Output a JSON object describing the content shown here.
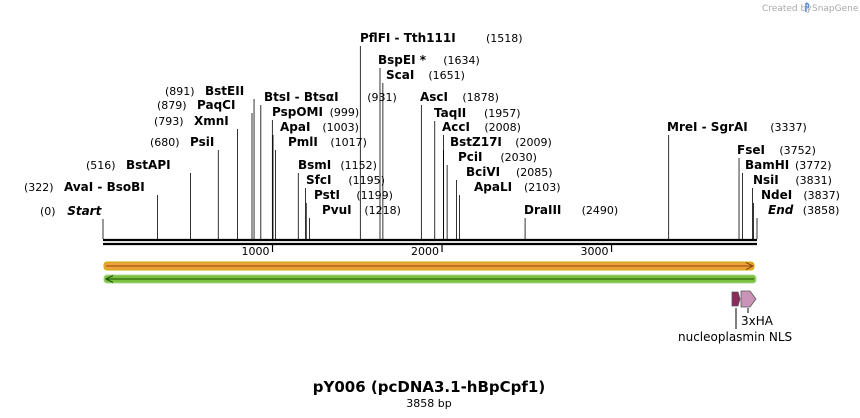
{
  "credit": {
    "created_by": "Created by",
    "brand": "SnapGene"
  },
  "title": "pY006 (pcDNA3.1-hBpCpf1)",
  "subtitle": "3858 bp",
  "total_length": 3858,
  "ticks": [
    {
      "pos": 1000,
      "label": "1000"
    },
    {
      "pos": 2000,
      "label": "2000"
    },
    {
      "pos": 3000,
      "label": "3000"
    }
  ],
  "sites": [
    {
      "name": "Start",
      "pos": "(0)",
      "value": 0,
      "style": "italic"
    },
    {
      "name": "AvaI - BsoBI",
      "pos": "(322)",
      "value": 322
    },
    {
      "name": "BstAPI",
      "pos": "(516)",
      "value": 516
    },
    {
      "name": "PsiI",
      "pos": "(680)",
      "value": 680
    },
    {
      "name": "XmnI",
      "pos": "(793)",
      "value": 793
    },
    {
      "name": "PaqCI",
      "pos": "(879)",
      "value": 879
    },
    {
      "name": "BstEII",
      "pos": "(891)",
      "value": 891
    },
    {
      "name": "BtsI - BtsαI",
      "pos": "(931)",
      "value": 931
    },
    {
      "name": "PspOMI",
      "pos": "(999)",
      "value": 999
    },
    {
      "name": "ApaI",
      "pos": "(1003)",
      "value": 1003
    },
    {
      "name": "PmlI",
      "pos": "(1017)",
      "value": 1017
    },
    {
      "name": "BsmI",
      "pos": "(1152)",
      "value": 1152
    },
    {
      "name": "SfcI",
      "pos": "(1195)",
      "value": 1195
    },
    {
      "name": "PstI",
      "pos": "(1199)",
      "value": 1199
    },
    {
      "name": "PvuI",
      "pos": "(1218)",
      "value": 1218
    },
    {
      "name": "PflFI - Tth111I",
      "pos": "(1518)",
      "value": 1518
    },
    {
      "name": "BspEI *",
      "pos": "(1634)",
      "value": 1634
    },
    {
      "name": "ScaI",
      "pos": "(1651)",
      "value": 1651
    },
    {
      "name": "AscI",
      "pos": "(1878)",
      "value": 1878
    },
    {
      "name": "TaqII",
      "pos": "(1957)",
      "value": 1957
    },
    {
      "name": "AccI",
      "pos": "(2008)",
      "value": 2008
    },
    {
      "name": "BstZ17I",
      "pos": "(2009)",
      "value": 2009
    },
    {
      "name": "PciI",
      "pos": "(2030)",
      "value": 2030
    },
    {
      "name": "BciVI",
      "pos": "(2085)",
      "value": 2085
    },
    {
      "name": "ApaLI",
      "pos": "(2103)",
      "value": 2103
    },
    {
      "name": "DraIII",
      "pos": "(2490)",
      "value": 2490
    },
    {
      "name": "MreI - SgrAI",
      "pos": "(3337)",
      "value": 3337
    },
    {
      "name": "FseI",
      "pos": "(3752)",
      "value": 3752
    },
    {
      "name": "BamHI",
      "pos": "(3772)",
      "value": 3772
    },
    {
      "name": "NsiI",
      "pos": "(3831)",
      "value": 3831
    },
    {
      "name": "NdeI",
      "pos": "(3837)",
      "value": 3837
    },
    {
      "name": "End",
      "pos": "(3858)",
      "value": 3858,
      "style": "italic"
    }
  ],
  "features": [
    {
      "name": "3xHA",
      "color": "#c994b8"
    },
    {
      "name": "nucleoplasmin NLS",
      "color": "#8c2a5c"
    }
  ],
  "colors": {
    "top_strand_arrow": "#f0a040",
    "top_strand_border": "#c8b000",
    "bottom_strand_arrow": "#7cc040",
    "bottom_strand_border": "#a8d890",
    "backbone": "#000000",
    "logo_accent": "#5b8fd0"
  }
}
